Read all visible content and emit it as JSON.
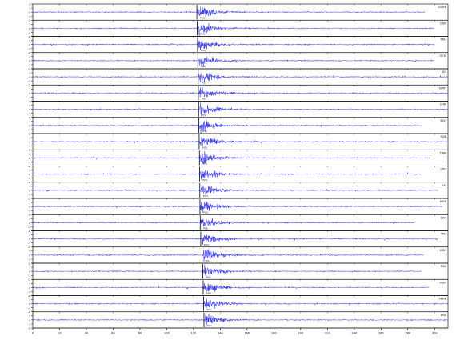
{
  "colors": {
    "trace": "#1f1fe8",
    "frame": "#000000",
    "pick": "#000000",
    "background": "#ffffff"
  },
  "chart_data": {
    "type": "line",
    "title": "",
    "xlabel": "",
    "ylabel": "",
    "xlim": [
      0,
      310
    ],
    "ylim_per_trace": [
      -2,
      2
    ],
    "x_ticks": [
      0,
      20,
      40,
      60,
      80,
      100,
      120,
      140,
      160,
      180,
      200,
      220,
      240,
      260,
      280,
      300
    ],
    "x_tick_labels": [
      "0",
      "20",
      "40",
      "60",
      "80",
      "100",
      "120",
      "140",
      "160",
      "180",
      "200",
      "220",
      "240",
      "260",
      "280",
      "300"
    ],
    "y_ticks": [
      -2,
      -1,
      0,
      1,
      2
    ],
    "y_tick_labels": [
      "-2",
      "-1",
      "0",
      "1",
      "2"
    ],
    "grid": false,
    "pick_label": "P(S)",
    "series": [
      {
        "name": "LOWE",
        "pick": 122.5,
        "end": 293
      },
      {
        "name": "DSN",
        "pick": 122.7,
        "end": 300
      },
      {
        "name": "TKH",
        "pick": 123.0,
        "end": 300
      },
      {
        "name": "OCM",
        "pick": 123.2,
        "end": 300
      },
      {
        "name": "SIO",
        "pick": 123.5,
        "end": 310
      },
      {
        "name": "NMTI",
        "pick": 123.6,
        "end": 310
      },
      {
        "name": "CHM",
        "pick": 123.8,
        "end": 310
      },
      {
        "name": "ECH",
        "pick": 124.0,
        "end": 291
      },
      {
        "name": "SUB",
        "pick": 124.2,
        "end": 310
      },
      {
        "name": "TWN",
        "pick": 124.4,
        "end": 297
      },
      {
        "name": "CXO",
        "pick": 124.5,
        "end": 290
      },
      {
        "name": "SSI",
        "pick": 124.7,
        "end": 303
      },
      {
        "name": "MDS",
        "pick": 124.8,
        "end": 306
      },
      {
        "name": "SKG",
        "pick": 125.0,
        "end": 285
      },
      {
        "name": "TAO",
        "pick": 125.4,
        "end": 303
      },
      {
        "name": "WSH",
        "pick": 126.4,
        "end": 292
      },
      {
        "name": "MSL",
        "pick": 126.9,
        "end": 290
      },
      {
        "name": "MDN",
        "pick": 127.2,
        "end": 296
      },
      {
        "name": "PENK",
        "pick": 127.5,
        "end": 310
      },
      {
        "name": "PNS",
        "pick": 127.8,
        "end": 310
      }
    ]
  }
}
